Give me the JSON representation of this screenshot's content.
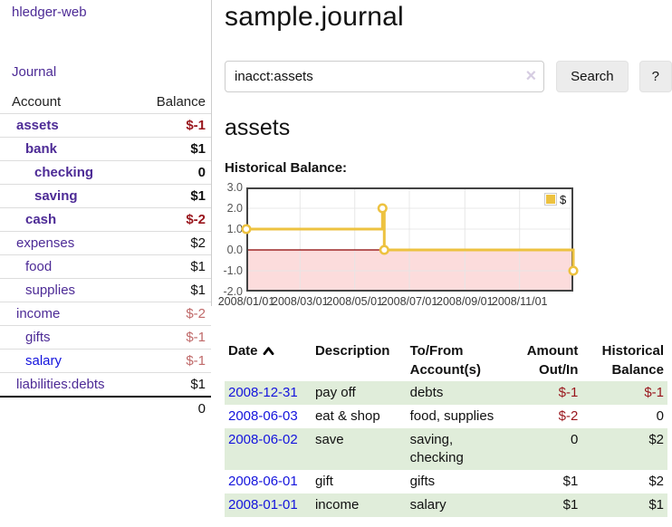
{
  "app": {
    "brand": "hledger-web",
    "nav_journal": "Journal"
  },
  "sidebar": {
    "accounts": {
      "col_account": "Account",
      "col_balance": "Balance",
      "rows": [
        {
          "account": "assets",
          "balance": "$-1",
          "depth": 1,
          "emphasis": true,
          "link_color": "purple",
          "balance_tone": "neg-strong"
        },
        {
          "account": "bank",
          "balance": "$1",
          "depth": 2,
          "emphasis": true,
          "link_color": "purple",
          "balance_tone": "normal"
        },
        {
          "account": "checking",
          "balance": "0",
          "depth": 3,
          "emphasis": true,
          "link_color": "purple",
          "balance_tone": "normal"
        },
        {
          "account": "saving",
          "balance": "$1",
          "depth": 3,
          "emphasis": true,
          "link_color": "purple",
          "balance_tone": "normal"
        },
        {
          "account": "cash",
          "balance": "$-2",
          "depth": 2,
          "emphasis": true,
          "link_color": "purple",
          "balance_tone": "neg-strong"
        },
        {
          "account": "expenses",
          "balance": "$2",
          "depth": 1,
          "emphasis": false,
          "link_color": "purple",
          "balance_tone": "normal"
        },
        {
          "account": "food",
          "balance": "$1",
          "depth": 2,
          "emphasis": false,
          "link_color": "purple",
          "balance_tone": "normal"
        },
        {
          "account": "supplies",
          "balance": "$1",
          "depth": 2,
          "emphasis": false,
          "link_color": "purple",
          "balance_tone": "normal"
        },
        {
          "account": "income",
          "balance": "$-2",
          "depth": 1,
          "emphasis": false,
          "link_color": "purple",
          "balance_tone": "neg-soft"
        },
        {
          "account": "gifts",
          "balance": "$-1",
          "depth": 2,
          "emphasis": false,
          "link_color": "purple",
          "balance_tone": "neg-soft"
        },
        {
          "account": "salary",
          "balance": "$-1",
          "depth": 2,
          "emphasis": false,
          "link_color": "blue",
          "balance_tone": "neg-soft"
        },
        {
          "account": "liabilities:debts",
          "balance": "$1",
          "depth": 1,
          "emphasis": false,
          "link_color": "purple",
          "balance_tone": "normal"
        }
      ],
      "total": "0"
    }
  },
  "main": {
    "title": "sample.journal",
    "search": {
      "value": "inacct:assets",
      "clear_icon": "×",
      "submit_label": "Search",
      "help_label": "?"
    },
    "account_heading": "assets",
    "chart_heading": "Historical Balance:"
  },
  "chart_data": {
    "type": "line",
    "style": "step",
    "title": "Historical Balance of assets",
    "x_type": "date",
    "x_range": [
      "2008/01/01",
      "2008/12/31"
    ],
    "x_ticks": [
      "2008/01/01",
      "2008/03/01",
      "2008/05/01",
      "2008/07/01",
      "2008/09/01",
      "2008/11/01"
    ],
    "y_ticks": [
      "3.0",
      "2.0",
      "1.0",
      "0.0",
      "-1.0",
      "-2.0"
    ],
    "ylim": [
      -2,
      3
    ],
    "grid": true,
    "negative_region_shaded": true,
    "legend": {
      "position": "top-right",
      "entries": [
        "$"
      ]
    },
    "series": [
      {
        "name": "$",
        "points": [
          [
            "2008/01/01",
            1.0
          ],
          [
            "2008/06/01",
            2.0
          ],
          [
            "2008/06/03",
            0.0
          ],
          [
            "2008/12/31",
            -1.0
          ]
        ]
      }
    ]
  },
  "transactions": {
    "headers": [
      {
        "label": "Date",
        "sorted_asc": true,
        "align": "left"
      },
      {
        "label": "Description",
        "align": "left"
      },
      {
        "label": "To/From Account(s)",
        "align": "left"
      },
      {
        "label": "Amount Out/In",
        "align": "right"
      },
      {
        "label": "Historical Balance",
        "align": "right"
      }
    ],
    "rows": [
      {
        "date": "2008-12-31",
        "description": "pay off",
        "accounts": [
          "debts"
        ],
        "amount": "$-1",
        "balance": "$-1"
      },
      {
        "date": "2008-06-03",
        "description": "eat & shop",
        "accounts": [
          "food, supplies"
        ],
        "amount": "$-2",
        "balance": "0"
      },
      {
        "date": "2008-06-02",
        "description": "save",
        "accounts": [
          "saving,",
          "checking"
        ],
        "amount": "0",
        "balance": "$2"
      },
      {
        "date": "2008-06-01",
        "description": "gift",
        "accounts": [
          "gifts"
        ],
        "amount": "$1",
        "balance": "$2"
      },
      {
        "date": "2008-01-01",
        "description": "income",
        "accounts": [
          "salary"
        ],
        "amount": "$1",
        "balance": "$1"
      }
    ]
  },
  "colors": {
    "purple": "#4d2b96",
    "blue": "#1414dd",
    "neg_strong": "#99151c",
    "neg_soft": "#c06a6a",
    "row_green": "#e0edda",
    "gold": "#edc240",
    "pink_region": "#fcdcdc",
    "zero_line": "#8b0000",
    "grid": "#e6e6e6",
    "plot_border": "#434343",
    "divider": "#cccccc"
  }
}
